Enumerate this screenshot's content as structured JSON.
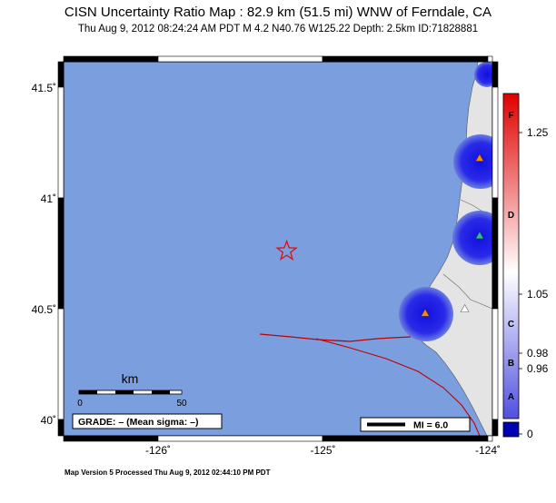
{
  "title": "CISN Uncertainty Ratio Map : 82.9 km (51.5 mi) WNW of Ferndale, CA",
  "subtitle": "Thu Aug  9, 2012 08:24:24 AM PDT   M 4.2   N40.76 W125.22   Depth: 2.5km   ID:71828881",
  "footer": "Map Version 5 Processed Thu Aug  9, 2012 02:44:10 PM PDT",
  "map": {
    "lat_ticks": [
      "41.5˚",
      "41˚",
      "40.5˚",
      "40˚"
    ],
    "lon_ticks": [
      "-126˚",
      "-125˚",
      "-124˚"
    ],
    "lat_values": [
      41.5,
      41.0,
      40.5,
      40.0
    ],
    "lon_values": [
      -126,
      -125,
      -124
    ],
    "ocean_color": "#7b9ede",
    "land_color": "#e4e4e4",
    "fault_color": "#c00000",
    "epicenter": {
      "lat": 40.76,
      "lon": -125.22,
      "symbol": "star",
      "color": "#e01010"
    },
    "stations": [
      {
        "lat": 41.18,
        "lon": -124.05,
        "color": "#ff8800"
      },
      {
        "lat": 40.83,
        "lon": -124.05,
        "color": "#20c0a0"
      },
      {
        "lat": 40.48,
        "lon": -124.38,
        "color": "#ff8800"
      },
      {
        "lat": 40.5,
        "lon": -124.14,
        "color": "#ffffff"
      }
    ],
    "scale_bar": {
      "label": "km",
      "start": "0",
      "end": "50"
    },
    "grade_box": "GRADE: – (Mean sigma: –)",
    "mi_box": "MI = 6.0"
  },
  "colorbar": {
    "letters": [
      "F",
      "D",
      "C",
      "B",
      "A"
    ],
    "values": [
      "1.25",
      "1.05",
      "0.98",
      "0.96",
      "0"
    ],
    "colors": {
      "top": "#e00000",
      "middle": "#ffffff",
      "bottom": "#5050e0",
      "swatch": "#0000b0"
    }
  }
}
